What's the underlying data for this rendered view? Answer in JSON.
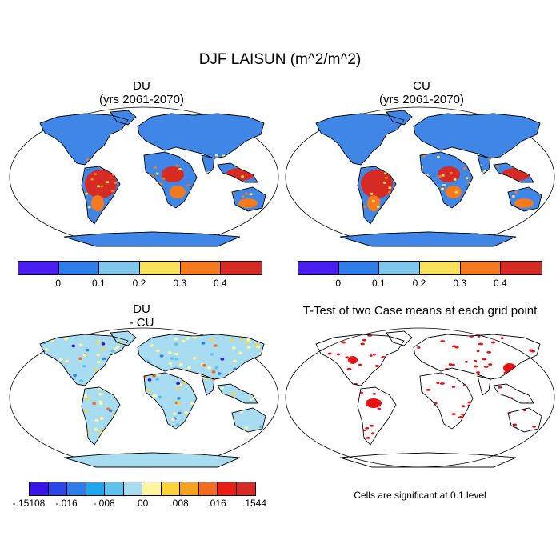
{
  "title": "DJF LAISUN (m^2/m^2)",
  "panels": {
    "du": {
      "line1": "DU",
      "line2": "(yrs 2061-2070)"
    },
    "cu": {
      "line1": "CU",
      "line2": "(yrs 2061-2070)"
    },
    "diff": {
      "line1": "DU",
      "line2": "- CU"
    },
    "ttest": {
      "line1": "T-Test of two Case means at each grid point"
    }
  },
  "colorbar_main": {
    "colors": [
      "#4a1ef0",
      "#2f7de8",
      "#7ec6ea",
      "#fbe15a",
      "#f57a1e",
      "#d62a25"
    ],
    "labels": [
      "0",
      "0.1",
      "0.2",
      "0.3",
      "0.4"
    ]
  },
  "colorbar_diff": {
    "colors": [
      "#3a14e6",
      "#2a48e8",
      "#2f7de8",
      "#1ea6f0",
      "#5ec1ee",
      "#a8dcf0",
      "#fff5a0",
      "#fbd43a",
      "#f5a21e",
      "#f56b1e",
      "#e81e14",
      "#d62a25"
    ],
    "labels": [
      "-.15108",
      "-.016",
      "-.008",
      ".00",
      ".008",
      ".016",
      ".1544"
    ]
  },
  "note": "Cells are significant at 0.1 level",
  "map_colors": {
    "ocean": "#ffffff",
    "land_base": "#3f86e6",
    "tropics": "#d62a25",
    "orange": "#f57a1e",
    "yellow": "#fbe15a",
    "antarctica": "#3f86e6",
    "diff_land": "#a8dcf0",
    "diff_yellow": "#fff5a0",
    "significant": "#e81010"
  }
}
